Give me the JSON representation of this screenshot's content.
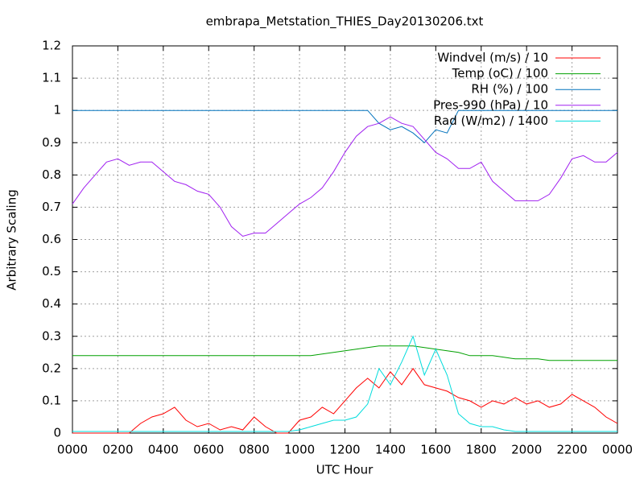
{
  "chart_data": {
    "type": "line",
    "title": "embrapa_Metstation_THIES_Day20130206.txt",
    "x_label": "UTC Hour",
    "y_label": "Arbitrary Scaling",
    "x": [
      0,
      0.5,
      1,
      1.5,
      2,
      2.5,
      3,
      3.5,
      4,
      4.5,
      5,
      5.5,
      6,
      6.5,
      7,
      7.5,
      8,
      8.5,
      9,
      9.5,
      10,
      10.5,
      11,
      11.5,
      12,
      12.5,
      13,
      13.5,
      14,
      14.5,
      15,
      15.5,
      16,
      16.5,
      17,
      17.5,
      18,
      18.5,
      19,
      19.5,
      20,
      20.5,
      21,
      21.5,
      22,
      22.5,
      23,
      23.5,
      24
    ],
    "series": [
      {
        "name": "Windvel (m/s) / 10",
        "color": "#ff0000",
        "values": [
          0,
          0,
          0,
          0,
          0,
          0,
          0.03,
          0.05,
          0.06,
          0.08,
          0.04,
          0.02,
          0.03,
          0.01,
          0.02,
          0.01,
          0.05,
          0.02,
          0,
          0,
          0.04,
          0.05,
          0.08,
          0.06,
          0.1,
          0.14,
          0.17,
          0.14,
          0.19,
          0.15,
          0.2,
          0.15,
          0.14,
          0.13,
          0.11,
          0.1,
          0.08,
          0.1,
          0.09,
          0.11,
          0.09,
          0.1,
          0.08,
          0.09,
          0.12,
          0.1,
          0.08,
          0.05,
          0.03
        ]
      },
      {
        "name": "Temp (oC) / 100",
        "color": "#00a000",
        "values": [
          0.24,
          0.24,
          0.24,
          0.24,
          0.24,
          0.24,
          0.24,
          0.24,
          0.24,
          0.24,
          0.24,
          0.24,
          0.24,
          0.24,
          0.24,
          0.24,
          0.24,
          0.24,
          0.24,
          0.24,
          0.24,
          0.24,
          0.245,
          0.25,
          0.255,
          0.26,
          0.265,
          0.27,
          0.27,
          0.27,
          0.27,
          0.265,
          0.26,
          0.255,
          0.25,
          0.24,
          0.24,
          0.24,
          0.235,
          0.23,
          0.23,
          0.23,
          0.225,
          0.225,
          0.225,
          0.225,
          0.225,
          0.225,
          0.225
        ]
      },
      {
        "name": "RH (%) / 100",
        "color": "#0072bd",
        "values": [
          1,
          1,
          1,
          1,
          1,
          1,
          1,
          1,
          1,
          1,
          1,
          1,
          1,
          1,
          1,
          1,
          1,
          1,
          1,
          1,
          1,
          1,
          1,
          1,
          1,
          1,
          1,
          0.96,
          0.94,
          0.95,
          0.93,
          0.9,
          0.94,
          0.93,
          1,
          1,
          1,
          1,
          1,
          1,
          1,
          1,
          1,
          1,
          1,
          1,
          1,
          1,
          1
        ]
      },
      {
        "name": "Pres-990 (hPa) / 10",
        "color": "#a020f0",
        "values": [
          0.71,
          0.76,
          0.8,
          0.84,
          0.85,
          0.83,
          0.84,
          0.84,
          0.81,
          0.78,
          0.77,
          0.75,
          0.74,
          0.7,
          0.64,
          0.61,
          0.62,
          0.62,
          0.65,
          0.68,
          0.71,
          0.73,
          0.76,
          0.81,
          0.87,
          0.92,
          0.95,
          0.96,
          0.98,
          0.96,
          0.95,
          0.91,
          0.87,
          0.85,
          0.82,
          0.82,
          0.84,
          0.78,
          0.75,
          0.72,
          0.72,
          0.72,
          0.74,
          0.79,
          0.85,
          0.86,
          0.84,
          0.84,
          0.87
        ]
      },
      {
        "name": "Rad (W/m2) / 1400",
        "color": "#00dcdc",
        "values": [
          0.005,
          0.005,
          0.005,
          0.005,
          0.005,
          0.005,
          0.005,
          0.005,
          0.005,
          0.005,
          0.005,
          0.005,
          0.005,
          0.005,
          0.005,
          0.005,
          0.005,
          0.005,
          0.005,
          0.005,
          0.01,
          0.02,
          0.03,
          0.04,
          0.04,
          0.05,
          0.09,
          0.2,
          0.15,
          0.22,
          0.3,
          0.18,
          0.26,
          0.18,
          0.06,
          0.03,
          0.02,
          0.02,
          0.01,
          0.005,
          0.005,
          0.005,
          0.005,
          0.005,
          0.005,
          0.005,
          0.005,
          0.005,
          0.005
        ]
      }
    ],
    "xlim": [
      0,
      24
    ],
    "xticks": [
      {
        "value": 0,
        "label": "0000"
      },
      {
        "value": 2,
        "label": "0200"
      },
      {
        "value": 4,
        "label": "0400"
      },
      {
        "value": 6,
        "label": "0600"
      },
      {
        "value": 8,
        "label": "0800"
      },
      {
        "value": 10,
        "label": "1000"
      },
      {
        "value": 12,
        "label": "1200"
      },
      {
        "value": 14,
        "label": "1400"
      },
      {
        "value": 16,
        "label": "1600"
      },
      {
        "value": 18,
        "label": "1800"
      },
      {
        "value": 20,
        "label": "2000"
      },
      {
        "value": 22,
        "label": "2200"
      },
      {
        "value": 24,
        "label": "0000"
      }
    ],
    "ylim": [
      0,
      1.2
    ],
    "yticks": [
      0,
      0.1,
      0.2,
      0.3,
      0.4,
      0.5,
      0.6,
      0.7,
      0.8,
      0.9,
      1,
      1.1,
      1.2
    ],
    "grid": true,
    "legend": "top-right"
  }
}
